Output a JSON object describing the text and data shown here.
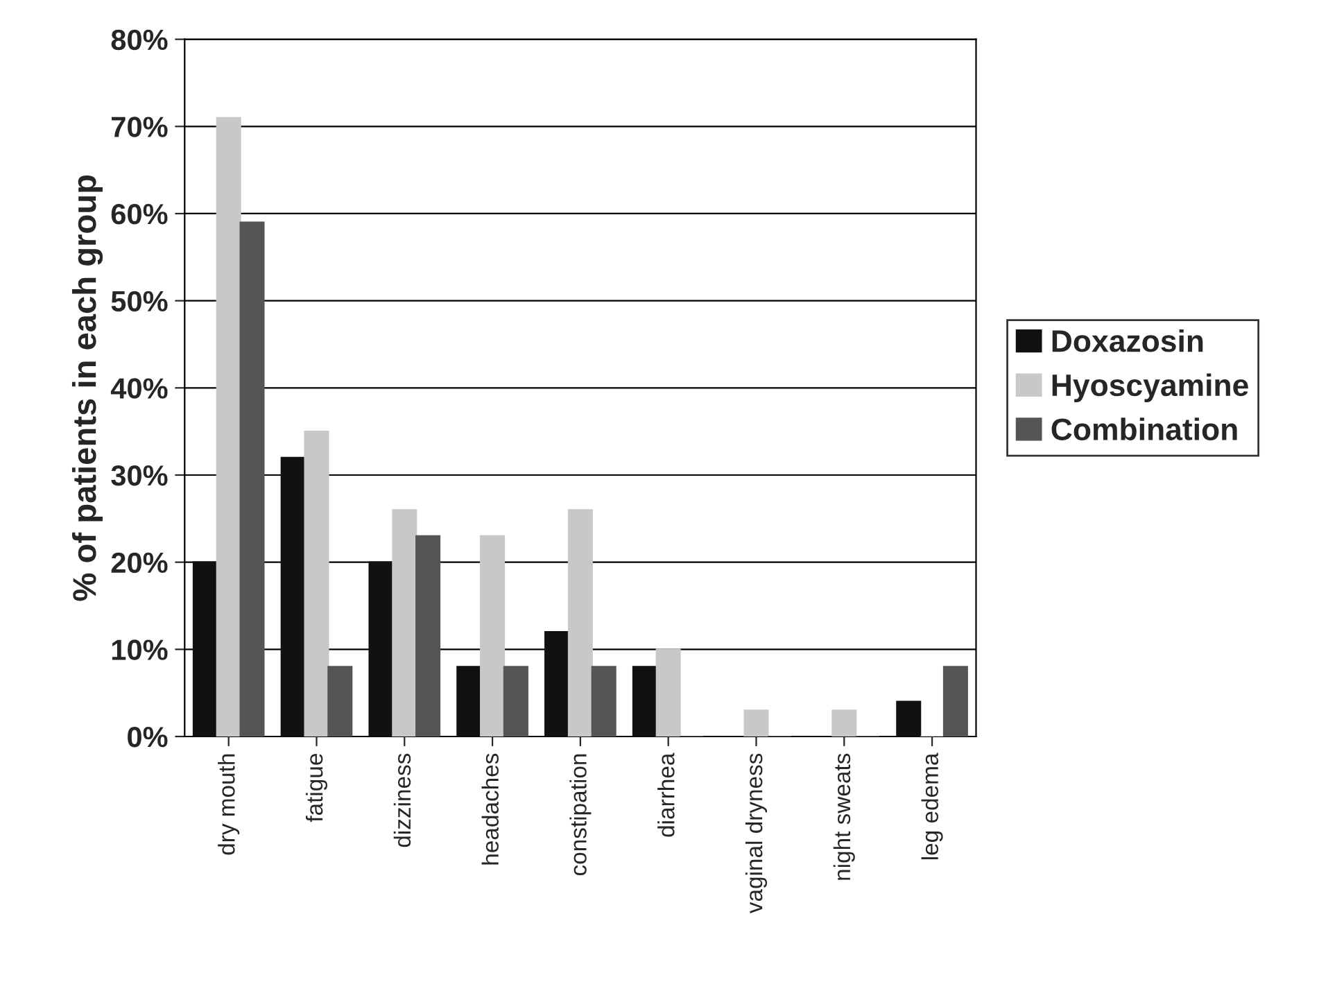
{
  "chart_data": {
    "type": "bar",
    "ylabel": "% of patients in each group",
    "categories": [
      "dry mouth",
      "fatigue",
      "dizziness",
      "headaches",
      "constipation",
      "diarrhea",
      "vaginal dryness",
      "night sweats",
      "leg edema"
    ],
    "series": [
      {
        "name": "Doxazosin",
        "color": "#111111",
        "values": [
          20,
          32,
          20,
          8,
          12,
          8,
          0,
          0,
          4
        ]
      },
      {
        "name": "Hyoscyamine",
        "color": "#c8c8c8",
        "values": [
          71,
          35,
          26,
          23,
          26,
          10,
          3,
          3,
          0
        ]
      },
      {
        "name": "Combination",
        "color": "#555555",
        "values": [
          59,
          8,
          23,
          8,
          8,
          0,
          0,
          0,
          8
        ]
      }
    ],
    "ylim": [
      0,
      80
    ],
    "yticks": [
      {
        "value": 0,
        "label": "0%"
      },
      {
        "value": 10,
        "label": "10%"
      },
      {
        "value": 20,
        "label": "20%"
      },
      {
        "value": 30,
        "label": "30%"
      },
      {
        "value": 40,
        "label": "40%"
      },
      {
        "value": 50,
        "label": "50%"
      },
      {
        "value": 60,
        "label": "60%"
      },
      {
        "value": 70,
        "label": "70%"
      },
      {
        "value": 80,
        "label": "80%"
      }
    ],
    "grid": "y",
    "legend": "right"
  }
}
